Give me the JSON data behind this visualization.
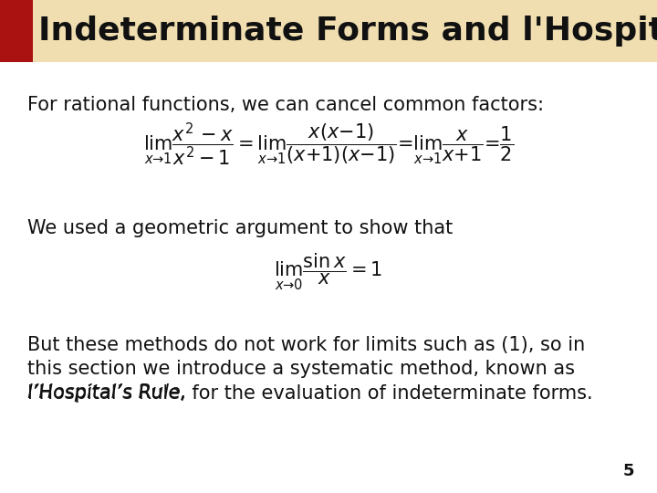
{
  "title": "Indeterminate Forms and l'Hospital's Rule",
  "title_bg_color": "#F0DEB0",
  "title_fg_color": "#111111",
  "red_rect_color": "#AA1111",
  "bg_color": "#FFFFFF",
  "text_color": "#111111",
  "line1": "For rational functions, we can cancel common factors:",
  "formula1": "$\\lim_{x \\to 1} \\dfrac{x^2 - x}{x^2 - 1} = \\lim_{x \\to 1} \\dfrac{x(x-1)}{(x+1)(x-1)} = \\lim_{x \\to 1} \\dfrac{x}{x+1} = \\dfrac{1}{2}$",
  "line2": "We used a geometric argument to show that",
  "formula2": "$\\lim_{x \\to 0} \\dfrac{\\sin x}{x} = 1$",
  "line3a": "But these methods do not work for limits such as (1), so in",
  "line3b": "this section we introduce a systematic method, known as",
  "line3c_italic": "l’Hospital’s Rule,",
  "line3c_normal": " for the evaluation of indeterminate forms.",
  "page_num": "5",
  "font_size_title": 26,
  "font_size_body": 15,
  "font_size_formula1": 15,
  "font_size_formula2": 15,
  "font_size_page": 13
}
